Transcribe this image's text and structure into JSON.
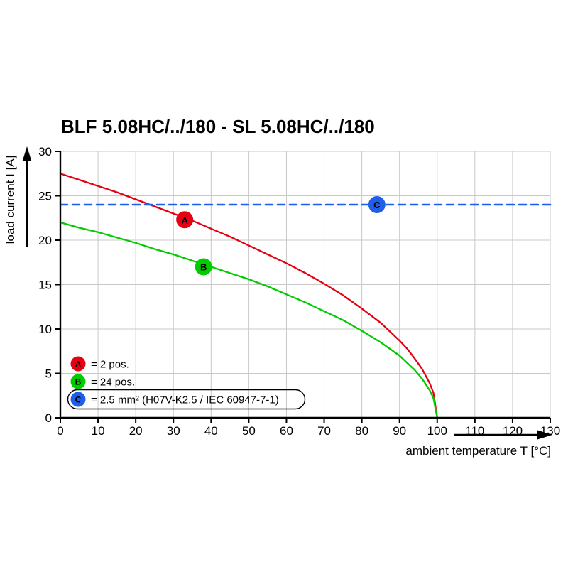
{
  "chart_data": {
    "type": "line",
    "title": "BLF 5.08HC/../180 - SL 5.08HC/../180",
    "xlabel": "ambient temperature T [°C]",
    "ylabel": "load current I [A]",
    "xlim": [
      0,
      130
    ],
    "ylim": [
      0,
      30
    ],
    "xticks": [
      0,
      10,
      20,
      30,
      40,
      50,
      60,
      70,
      80,
      90,
      100,
      110,
      120,
      130
    ],
    "yticks": [
      0,
      5,
      10,
      15,
      20,
      25,
      30
    ],
    "grid": true,
    "grid_color": "#c8c8c8",
    "axis_color": "#000000",
    "series": [
      {
        "name": "A",
        "color": "#e60012",
        "dashed": false,
        "x": [
          0,
          5,
          10,
          15,
          20,
          25,
          30,
          35,
          40,
          45,
          50,
          55,
          60,
          65,
          70,
          75,
          80,
          85,
          90,
          92,
          94,
          96,
          98,
          99,
          100
        ],
        "y": [
          27.5,
          26.8,
          26.1,
          25.4,
          24.6,
          23.8,
          23.0,
          22.2,
          21.3,
          20.4,
          19.4,
          18.4,
          17.4,
          16.3,
          15.1,
          13.8,
          12.3,
          10.7,
          8.7,
          7.8,
          6.7,
          5.5,
          3.9,
          2.8,
          0
        ],
        "marker": {
          "x": 33,
          "y": 22.3,
          "label": "A"
        }
      },
      {
        "name": "B",
        "color": "#00cc00",
        "dashed": false,
        "x": [
          0,
          5,
          10,
          15,
          20,
          25,
          30,
          35,
          40,
          45,
          50,
          55,
          60,
          65,
          70,
          75,
          80,
          85,
          90,
          92,
          94,
          96,
          98,
          99,
          100
        ],
        "y": [
          22,
          21.4,
          20.9,
          20.3,
          19.7,
          19.0,
          18.4,
          17.7,
          17.0,
          16.3,
          15.6,
          14.8,
          13.9,
          13.0,
          12.0,
          11.0,
          9.8,
          8.5,
          7.0,
          6.2,
          5.4,
          4.4,
          3.1,
          2.2,
          0
        ],
        "marker": {
          "x": 38,
          "y": 17,
          "label": "B"
        }
      },
      {
        "name": "C",
        "color": "#1e5ee8",
        "dashed": true,
        "x": [
          0,
          130
        ],
        "y": [
          24,
          24
        ],
        "marker": {
          "x": 84,
          "y": 24,
          "label": "C"
        }
      }
    ],
    "legend": [
      {
        "letter": "A",
        "color": "#e60012",
        "label": "= 2 pos.",
        "boxed": false
      },
      {
        "letter": "B",
        "color": "#00cc00",
        "label": "= 24 pos.",
        "boxed": false
      },
      {
        "letter": "C",
        "color": "#1e5ee8",
        "label": "= 2.5 mm² (H07V-K2.5 / IEC 60947-7-1)",
        "boxed": true
      }
    ],
    "legend_position": "lower-left-inside"
  }
}
